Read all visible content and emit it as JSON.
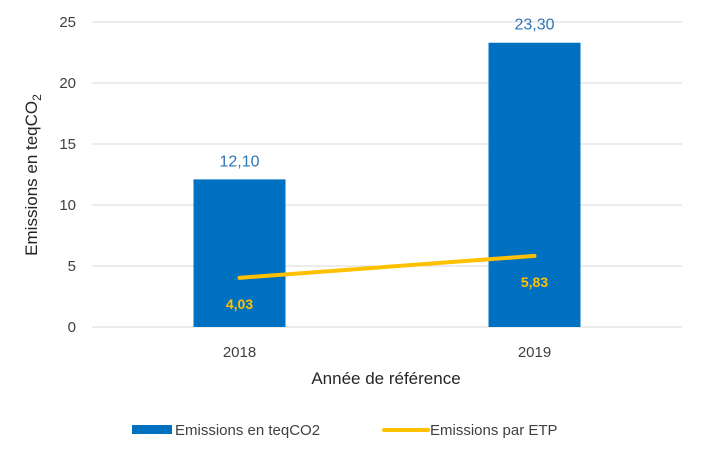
{
  "chart_data": {
    "type": "bar",
    "categories": [
      "2018",
      "2019"
    ],
    "series": [
      {
        "name": "Emissions en teqCO2",
        "type": "bar",
        "values": [
          12.1,
          23.3
        ],
        "labels": [
          "12,10",
          "23,30"
        ],
        "color": "#0070C0"
      },
      {
        "name": "Emissions par ETP",
        "type": "line",
        "values": [
          4.03,
          5.83
        ],
        "labels": [
          "4,03",
          "5,83"
        ],
        "color": "#FFC000"
      }
    ],
    "xlabel": "Année de référence",
    "ylabel_main": "Emissions en teqCO",
    "ylabel_sub": "2",
    "ylim": [
      0,
      25
    ],
    "yticks": [
      "0",
      "5",
      "10",
      "15",
      "20",
      "25"
    ],
    "grid": true,
    "legend_position": "bottom",
    "label_color_bar": "#2E75B6",
    "gridline_color": "#D9D9D9"
  }
}
